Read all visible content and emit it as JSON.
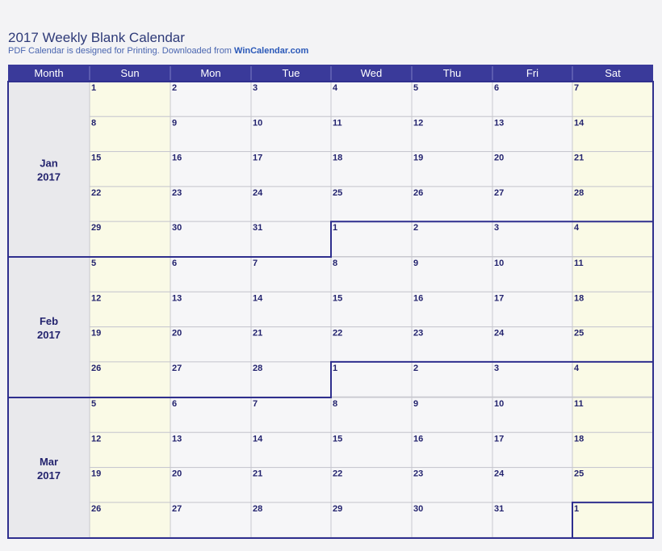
{
  "header": {
    "title": "2017 Weekly Blank Calendar",
    "subtitle_prefix": "PDF Calendar is designed for Printing.  Downloaded from ",
    "subtitle_link": "WinCalendar.com"
  },
  "calendar": {
    "columns": [
      "Month",
      "Sun",
      "Mon",
      "Tue",
      "Wed",
      "Thu",
      "Fri",
      "Sat"
    ],
    "colors": {
      "header_bg": "#3a3a9a",
      "border": "#2f2f8e",
      "weekend_bg": "#fafae6",
      "weekday_bg": "#f6f6f8",
      "month_bg": "#e9e9ec",
      "day_text": "#23236e"
    },
    "months": [
      {
        "name": "Jan",
        "year": "2017",
        "weeks": [
          [
            "1",
            "2",
            "3",
            "4",
            "5",
            "6",
            "7"
          ],
          [
            "8",
            "9",
            "10",
            "11",
            "12",
            "13",
            "14"
          ],
          [
            "15",
            "16",
            "17",
            "18",
            "19",
            "20",
            "21"
          ],
          [
            "22",
            "23",
            "24",
            "25",
            "26",
            "27",
            "28"
          ],
          [
            "29",
            "30",
            "31",
            "1",
            "2",
            "3",
            "4"
          ]
        ],
        "first_next_month_col": 3
      },
      {
        "name": "Feb",
        "year": "2017",
        "weeks": [
          [
            "5",
            "6",
            "7",
            "8",
            "9",
            "10",
            "11"
          ],
          [
            "12",
            "13",
            "14",
            "15",
            "16",
            "17",
            "18"
          ],
          [
            "19",
            "20",
            "21",
            "22",
            "23",
            "24",
            "25"
          ],
          [
            "26",
            "27",
            "28",
            "1",
            "2",
            "3",
            "4"
          ]
        ],
        "first_next_month_col": 3
      },
      {
        "name": "Mar",
        "year": "2017",
        "weeks": [
          [
            "5",
            "6",
            "7",
            "8",
            "9",
            "10",
            "11"
          ],
          [
            "12",
            "13",
            "14",
            "15",
            "16",
            "17",
            "18"
          ],
          [
            "19",
            "20",
            "21",
            "22",
            "23",
            "24",
            "25"
          ],
          [
            "26",
            "27",
            "28",
            "29",
            "30",
            "31",
            "1"
          ]
        ],
        "first_next_month_col": 6
      }
    ]
  }
}
